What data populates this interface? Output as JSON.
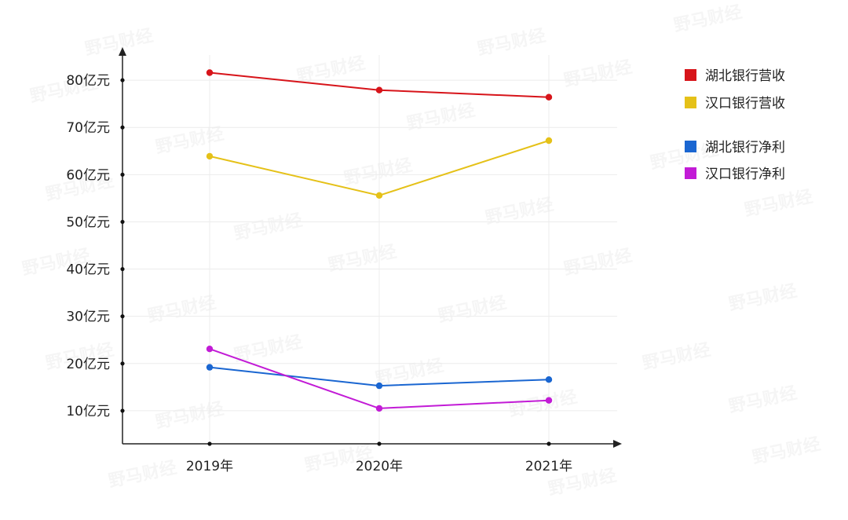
{
  "chart_data": {
    "type": "line",
    "categories": [
      "2019年",
      "2020年",
      "2021年"
    ],
    "yticks": [
      "10亿元",
      "20亿元",
      "30亿元",
      "40亿元",
      "50亿元",
      "60亿元",
      "70亿元",
      "80亿元"
    ],
    "ylim": [
      3,
      86
    ],
    "grid": true,
    "legend_position": "top-right",
    "series": [
      {
        "name": "湖北银行营收",
        "color": "#d7141a",
        "values": [
          81.6,
          77.9,
          76.4
        ]
      },
      {
        "name": "汉口银行营收",
        "color": "#e5c118",
        "values": [
          63.9,
          55.6,
          67.2
        ]
      },
      {
        "name": "湖北银行净利",
        "color": "#1a66d1",
        "values": [
          19.2,
          15.3,
          16.6
        ]
      },
      {
        "name": "汉口银行净利",
        "color": "#c21bd6",
        "values": [
          23.1,
          10.5,
          12.2
        ]
      }
    ]
  },
  "watermark": "野马财经"
}
